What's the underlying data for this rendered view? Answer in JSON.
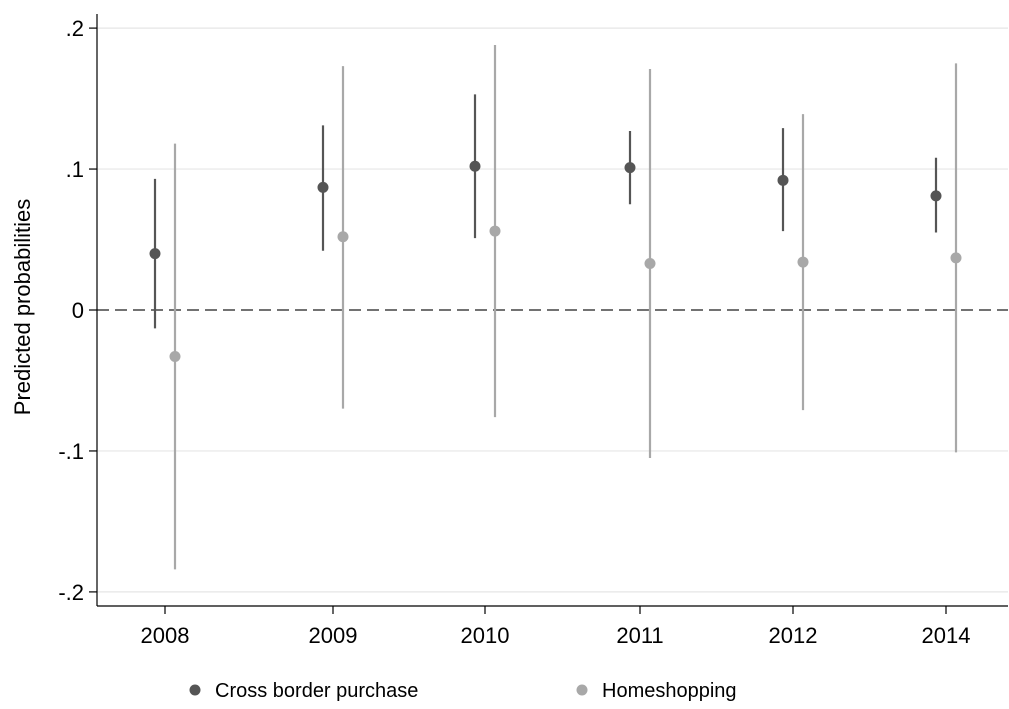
{
  "chart_data": {
    "type": "scatter",
    "title": "",
    "xlabel": "",
    "ylabel": "Predicted probabilities",
    "categories": [
      "2008",
      "2009",
      "2010",
      "2011",
      "2012",
      "2014"
    ],
    "ylim": [
      -0.21,
      0.21
    ],
    "yticks": [
      {
        "value": -0.2,
        "label": "-.2"
      },
      {
        "value": -0.1,
        "label": "-.1"
      },
      {
        "value": 0,
        "label": "0"
      },
      {
        "value": 0.1,
        "label": ".1"
      },
      {
        "value": 0.2,
        "label": ".2"
      }
    ],
    "grid": true,
    "reference_line": {
      "y": 0,
      "style": "dashed"
    },
    "legend_position": "bottom",
    "series": [
      {
        "name": "Cross border purchase",
        "color": "#555555",
        "estimates": [
          0.04,
          0.087,
          0.102,
          0.101,
          0.092,
          0.081
        ],
        "ci_low": [
          -0.013,
          0.042,
          0.051,
          0.075,
          0.056,
          0.055
        ],
        "ci_high": [
          0.093,
          0.131,
          0.153,
          0.127,
          0.129,
          0.108
        ]
      },
      {
        "name": "Homeshopping",
        "color": "#a8a8a8",
        "estimates": [
          -0.033,
          0.052,
          0.056,
          0.033,
          0.034,
          0.037
        ],
        "ci_low": [
          -0.184,
          -0.07,
          -0.076,
          -0.105,
          -0.071,
          -0.101
        ],
        "ci_high": [
          0.118,
          0.173,
          0.188,
          0.171,
          0.139,
          0.175
        ]
      }
    ]
  }
}
